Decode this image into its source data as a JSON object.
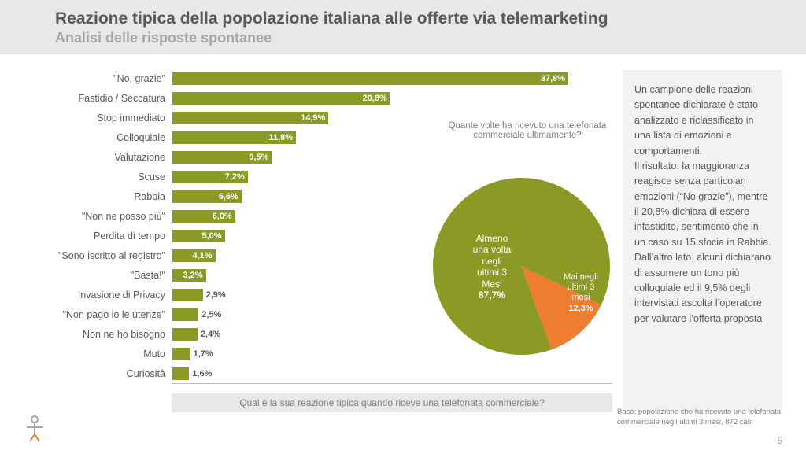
{
  "header": {
    "title": "Reazione tipica della popolazione italiana alle offerte via telemarketing",
    "subtitle": "Analisi delle risposte spontanee"
  },
  "bar_chart": {
    "type": "bar",
    "max_pct": 42,
    "bar_color": "#8a9a24",
    "axis_color": "#bfbfbf",
    "label_fontsize": 12.5,
    "value_fontsize": 11,
    "inside_threshold": 3.0,
    "items": [
      {
        "label": "\"No, grazie\"",
        "value": 37.8,
        "text": "37,8%"
      },
      {
        "label": "Fastidio / Seccatura",
        "value": 20.8,
        "text": "20,8%"
      },
      {
        "label": "Stop immediato",
        "value": 14.9,
        "text": "14,9%"
      },
      {
        "label": "Colloquiale",
        "value": 11.8,
        "text": "11,8%"
      },
      {
        "label": "Valutazione",
        "value": 9.5,
        "text": "9,5%"
      },
      {
        "label": "Scuse",
        "value": 7.2,
        "text": "7,2%"
      },
      {
        "label": "Rabbia",
        "value": 6.6,
        "text": "6,6%"
      },
      {
        "label": "\"Non ne posso più\"",
        "value": 6.0,
        "text": "6,0%"
      },
      {
        "label": "Perdita di tempo",
        "value": 5.0,
        "text": "5,0%"
      },
      {
        "label": "\"Sono iscritto al registro\"",
        "value": 4.1,
        "text": "4,1%"
      },
      {
        "label": "\"Basta!\"",
        "value": 3.2,
        "text": "3,2%"
      },
      {
        "label": "Invasione di Privacy",
        "value": 2.9,
        "text": "2,9%"
      },
      {
        "label": "\"Non pago io le utenze\"",
        "value": 2.5,
        "text": "2,5%"
      },
      {
        "label": "Non ne ho bisogno",
        "value": 2.4,
        "text": "2,4%"
      },
      {
        "label": "Muto",
        "value": 1.7,
        "text": "1,7%"
      },
      {
        "label": "Curiosità",
        "value": 1.6,
        "text": "1,6%"
      }
    ],
    "question": "Qual è la sua reazione tipica quando riceve una telefonata commerciale?"
  },
  "pie_chart": {
    "type": "pie",
    "question": "Quante volte ha ricevuto una telefonata commerciale ultimamente?",
    "slices": [
      {
        "key": "atleast",
        "value": 87.7,
        "color": "#8a9a24",
        "label_lines": [
          "Almeno",
          "una volta",
          "negli",
          "ultimi 3",
          "Mesi",
          "87,7%"
        ]
      },
      {
        "key": "never",
        "value": 12.3,
        "color": "#ed7d31",
        "label_lines": [
          "Mai negli",
          "ultimi 3",
          "mesi",
          "12,3%"
        ]
      }
    ],
    "start_angle_deg": 70
  },
  "side_text": "Un campione delle reazioni spontanee dichiarate è stato analizzato e riclassificato in una lista di emozioni e comportamenti.\nIl risultato: la maggioranza reagisce senza particolari emozioni (“No grazie”), mentre il 20,8% dichiara di essere infastidito, sentimento che in un caso su 15 sfocia in Rabbia. Dall’altro lato, alcuni dichiarano di assumere un tono più colloquiale ed il 9,5% degli intervistati ascolta l’operatore per valutare l’offerta proposta",
  "footnote": "Base: popolazione che ha ricevuto una telefonata commerciale negli ultimi 3 mesi, 872 casi",
  "page_number": "5",
  "colors": {
    "header_bg": "#e8e8e8",
    "side_bg": "#f2f2f2",
    "text_primary": "#595959",
    "text_secondary": "#a6a6a6"
  }
}
